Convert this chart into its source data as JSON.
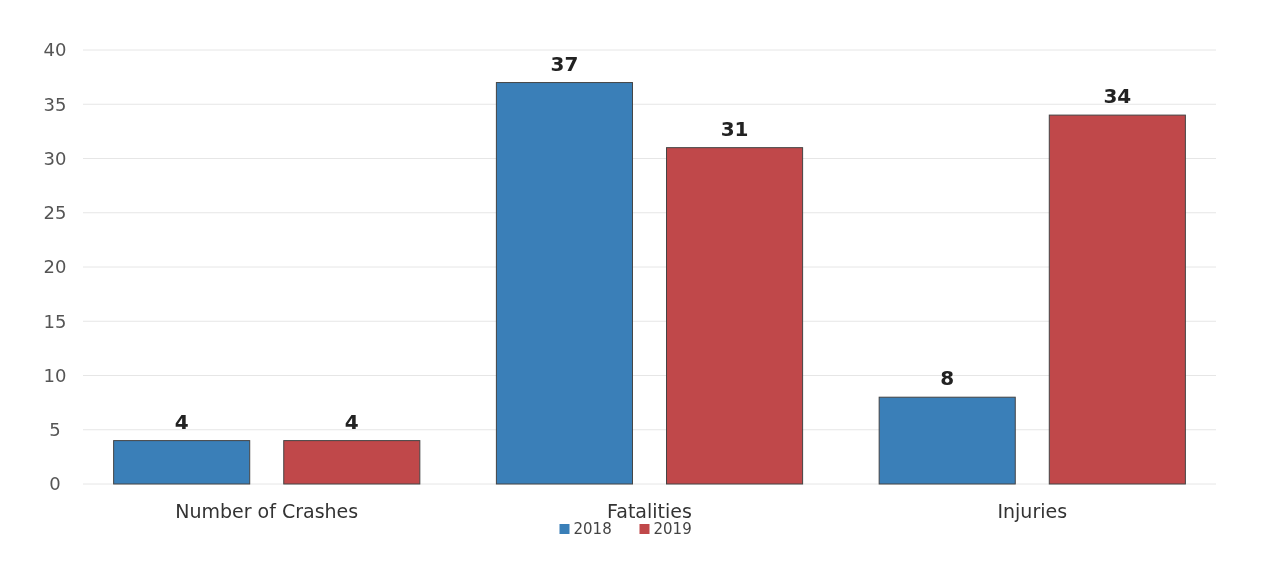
{
  "chart_data": {
    "type": "bar",
    "categories": [
      "Number of Crashes",
      "Fatalities",
      "Injuries"
    ],
    "series": [
      {
        "name": "2018",
        "color": "#3a7fb8",
        "values": [
          4,
          37,
          8
        ]
      },
      {
        "name": "2019",
        "color": "#c0484a",
        "values": [
          4,
          31,
          34
        ]
      }
    ],
    "ylim": [
      0,
      40
    ],
    "yticks": [
      0,
      5,
      10,
      15,
      20,
      25,
      30,
      35,
      40
    ],
    "grid": "y",
    "legend": "bottom",
    "data_labels": true
  }
}
